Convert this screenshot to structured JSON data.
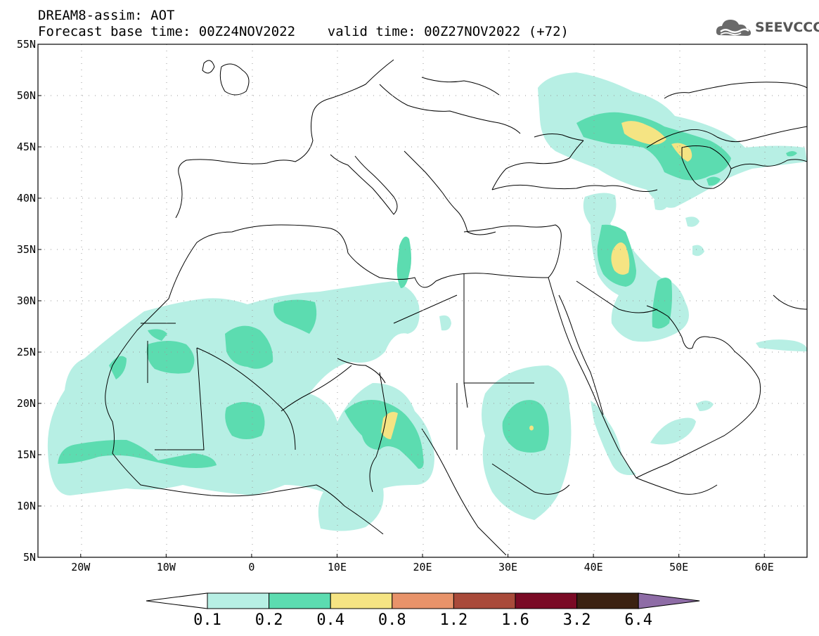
{
  "header": {
    "title_line1": "DREAM8-assim: AOT",
    "title_line2": "Forecast base time: 00Z24NOV2022    valid time: 00Z27NOV2022 (+72)",
    "logo_text": "SEEVCCC"
  },
  "map": {
    "lon_range": [
      -25,
      65
    ],
    "lat_range": [
      5,
      55
    ],
    "lat_ticks": [
      {
        "value": 55,
        "label": "55N"
      },
      {
        "value": 50,
        "label": "50N"
      },
      {
        "value": 45,
        "label": "45N"
      },
      {
        "value": 40,
        "label": "40N"
      },
      {
        "value": 35,
        "label": "35N"
      },
      {
        "value": 30,
        "label": "30N"
      },
      {
        "value": 25,
        "label": "25N"
      },
      {
        "value": 20,
        "label": "20N"
      },
      {
        "value": 15,
        "label": "15N"
      },
      {
        "value": 10,
        "label": "10N"
      },
      {
        "value": 5,
        "label": "5N"
      }
    ],
    "lon_ticks": [
      {
        "value": -20,
        "label": "20W"
      },
      {
        "value": -10,
        "label": "10W"
      },
      {
        "value": 0,
        "label": "0"
      },
      {
        "value": 10,
        "label": "10E"
      },
      {
        "value": 20,
        "label": "20E"
      },
      {
        "value": 30,
        "label": "30E"
      },
      {
        "value": 40,
        "label": "40E"
      },
      {
        "value": 50,
        "label": "50E"
      },
      {
        "value": 60,
        "label": "60E"
      }
    ],
    "gridlines": "dotted"
  },
  "colorbar": {
    "colors": [
      "#ffffff",
      "#b7efe4",
      "#5cdcb0",
      "#f5e483",
      "#e8936a",
      "#a94a3a",
      "#7a0a25",
      "#3b2212",
      "#8e6ca6"
    ],
    "labels": [
      "0.1",
      "0.2",
      "0.4",
      "0.8",
      "1.2",
      "1.6",
      "3.2",
      "6.4"
    ]
  },
  "colors": {
    "level1": "#b7efe4",
    "level2": "#5cdcb0",
    "level3": "#f5e483"
  }
}
